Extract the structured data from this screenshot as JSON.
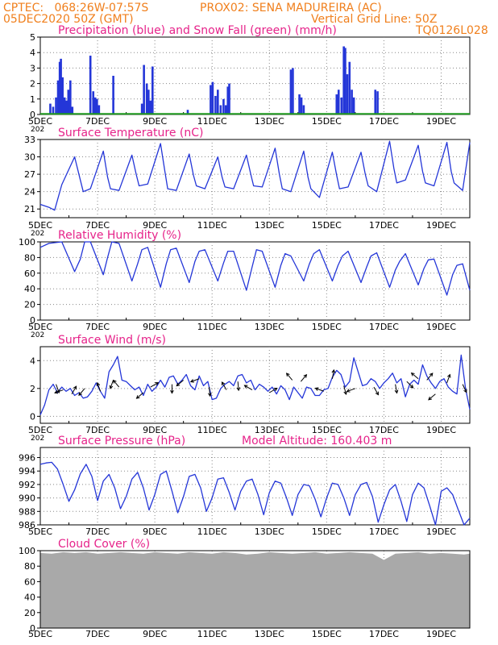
{
  "header": {
    "line1_left": "CPTEC:   068:26W-07:57S",
    "line1_right": "PROX02: SENA MADUREIRA (AC)",
    "line2_left": "05DEC2020 50Z (GMT)",
    "line2_right": "Vertical Grid Line: 50Z",
    "line3_right": "TQ0126L028"
  },
  "colors": {
    "header": "#f07f1c",
    "title": "#e6238a",
    "line": "#2436d8",
    "snow": "#1f9a1f",
    "cloud": "#a9a9a9"
  },
  "x_axis": {
    "labels": [
      "5DEC",
      "7DEC",
      "9DEC",
      "11DEC",
      "13DEC",
      "15DEC",
      "17DEC",
      "19DEC"
    ],
    "fragment": "202"
  },
  "chart_data": [
    {
      "id": "precip",
      "type": "bar",
      "title": "Precipitation (blue) and Snow Fall (green) (mm/h)",
      "ylim": [
        0,
        5
      ],
      "yticks": [
        0,
        1,
        2,
        3,
        4,
        5
      ],
      "grid": true,
      "x_day_range": [
        5,
        20
      ],
      "series": [
        {
          "name": "Precipitation",
          "color": "#2436d8",
          "x": [
            5.35,
            5.45,
            5.55,
            5.62,
            5.68,
            5.72,
            5.78,
            5.85,
            5.92,
            5.98,
            6.05,
            6.12,
            6.75,
            6.85,
            6.92,
            6.98,
            7.05,
            7.55,
            8.55,
            8.62,
            8.72,
            8.78,
            8.85,
            8.92,
            10.15,
            10.95,
            11.02,
            11.12,
            11.2,
            11.3,
            11.4,
            11.48,
            11.55,
            11.6,
            13.75,
            13.82,
            14.05,
            14.12,
            14.2,
            15.35,
            15.42,
            15.52,
            15.6,
            15.65,
            15.72,
            15.8,
            15.88,
            15.95,
            16.7,
            16.78
          ],
          "y": [
            0.7,
            0.5,
            1.1,
            2.2,
            3.4,
            3.6,
            2.4,
            1.1,
            0.9,
            1.6,
            2.2,
            0.5,
            3.8,
            1.5,
            1.1,
            1.0,
            0.6,
            2.5,
            0.7,
            3.2,
            2.0,
            1.6,
            0.9,
            3.1,
            0.3,
            1.9,
            2.1,
            1.2,
            1.6,
            0.6,
            1.0,
            0.6,
            1.8,
            2.0,
            2.9,
            3.0,
            1.3,
            1.1,
            0.6,
            1.3,
            1.6,
            1.1,
            4.4,
            4.3,
            2.6,
            3.4,
            1.6,
            1.1,
            1.6,
            1.5
          ]
        },
        {
          "name": "Snow Fall",
          "color": "#1f9a1f",
          "constant": 0
        }
      ]
    },
    {
      "id": "temp",
      "type": "line",
      "title": "Surface Temperature (nC)",
      "ylim": [
        19.5,
        33
      ],
      "yticks": [
        21,
        24,
        27,
        30,
        33
      ],
      "grid": true,
      "x": [
        5.0,
        5.3,
        5.5,
        5.75,
        6.2,
        6.4,
        6.5,
        6.75,
        7.2,
        7.35,
        7.45,
        7.75,
        8.2,
        8.35,
        8.45,
        8.75,
        9.2,
        9.35,
        9.45,
        9.75,
        10.2,
        10.35,
        10.45,
        10.75,
        11.2,
        11.35,
        11.45,
        11.75,
        12.2,
        12.35,
        12.45,
        12.75,
        13.2,
        13.35,
        13.45,
        13.75,
        14.2,
        14.35,
        14.45,
        14.75,
        15.2,
        15.35,
        15.45,
        15.75,
        16.2,
        16.35,
        16.45,
        16.75,
        17.2,
        17.35,
        17.45,
        17.75,
        18.2,
        18.35,
        18.45,
        18.75,
        19.2,
        19.35,
        19.45,
        19.75,
        20.0
      ],
      "values": [
        21.8,
        21.3,
        20.8,
        25.2,
        30.0,
        26.0,
        24.0,
        24.5,
        31.0,
        26.5,
        24.5,
        24.2,
        30.3,
        27.0,
        25.0,
        25.3,
        32.3,
        27.5,
        24.5,
        24.2,
        30.5,
        26.8,
        25.0,
        24.5,
        30.0,
        26.5,
        24.8,
        24.5,
        30.3,
        27.0,
        25.0,
        24.8,
        31.5,
        27.0,
        24.5,
        24.0,
        31.0,
        26.5,
        24.5,
        23.0,
        30.8,
        26.8,
        24.5,
        24.8,
        30.8,
        27.0,
        25.0,
        24.0,
        32.7,
        28.0,
        25.5,
        26.0,
        32.0,
        27.5,
        25.5,
        25.0,
        32.5,
        27.5,
        25.5,
        24.2,
        32.5
      ]
    },
    {
      "id": "rh",
      "type": "line",
      "title": "Relative Humidity (%)",
      "ylim": [
        0,
        100
      ],
      "yticks": [
        0,
        20,
        40,
        60,
        80,
        100
      ],
      "grid": true,
      "x": [
        5.0,
        5.3,
        5.5,
        5.75,
        6.2,
        6.4,
        6.55,
        6.75,
        7.2,
        7.35,
        7.5,
        7.75,
        8.2,
        8.4,
        8.55,
        8.75,
        9.2,
        9.4,
        9.55,
        9.75,
        10.2,
        10.4,
        10.55,
        10.75,
        11.2,
        11.4,
        11.55,
        11.75,
        12.2,
        12.4,
        12.55,
        12.75,
        13.2,
        13.4,
        13.55,
        13.75,
        14.2,
        14.4,
        14.55,
        14.75,
        15.2,
        15.4,
        15.55,
        15.75,
        16.2,
        16.4,
        16.55,
        16.75,
        17.2,
        17.4,
        17.55,
        17.75,
        18.2,
        18.4,
        18.55,
        18.75,
        19.2,
        19.4,
        19.55,
        19.75,
        20.0
      ],
      "values": [
        93,
        98,
        99,
        100,
        62,
        78,
        100,
        100,
        58,
        80,
        100,
        98,
        50,
        72,
        90,
        93,
        42,
        72,
        90,
        92,
        48,
        75,
        88,
        90,
        50,
        73,
        88,
        88,
        38,
        68,
        90,
        88,
        42,
        70,
        85,
        82,
        50,
        72,
        85,
        90,
        50,
        70,
        82,
        88,
        48,
        68,
        82,
        86,
        42,
        64,
        75,
        85,
        45,
        66,
        77,
        78,
        32,
        58,
        70,
        72,
        38
      ]
    },
    {
      "id": "wind",
      "type": "line",
      "title": "Surface Wind (m/s)",
      "ylim": [
        -0.5,
        5.0
      ],
      "yticks": [
        0,
        2,
        4
      ],
      "grid": true,
      "x": [
        5.0,
        5.15,
        5.3,
        5.45,
        5.6,
        5.75,
        5.9,
        6.05,
        6.2,
        6.35,
        6.5,
        6.65,
        6.8,
        6.95,
        7.1,
        7.25,
        7.4,
        7.55,
        7.7,
        7.85,
        8.0,
        8.15,
        8.3,
        8.45,
        8.6,
        8.75,
        8.9,
        9.05,
        9.2,
        9.35,
        9.5,
        9.65,
        9.8,
        9.95,
        10.1,
        10.25,
        10.4,
        10.55,
        10.7,
        10.85,
        11.0,
        11.15,
        11.3,
        11.45,
        11.6,
        11.75,
        11.9,
        12.05,
        12.2,
        12.35,
        12.5,
        12.65,
        12.8,
        12.95,
        13.1,
        13.25,
        13.4,
        13.55,
        13.7,
        13.85,
        14.0,
        14.15,
        14.3,
        14.45,
        14.6,
        14.75,
        14.9,
        15.05,
        15.2,
        15.35,
        15.5,
        15.65,
        15.8,
        15.95,
        16.1,
        16.25,
        16.4,
        16.55,
        16.7,
        16.85,
        17.0,
        17.15,
        17.3,
        17.45,
        17.6,
        17.75,
        17.9,
        18.05,
        18.2,
        18.35,
        18.5,
        18.65,
        18.8,
        18.95,
        19.1,
        19.25,
        19.4,
        19.55,
        19.7,
        19.85,
        20.0
      ],
      "values": [
        0.1,
        0.8,
        1.9,
        2.3,
        1.7,
        2.1,
        1.8,
        2.0,
        1.5,
        1.7,
        1.3,
        1.4,
        1.8,
        2.4,
        1.8,
        1.3,
        3.2,
        3.7,
        4.3,
        2.6,
        2.5,
        2.2,
        1.9,
        2.1,
        1.5,
        2.3,
        1.8,
        2.1,
        2.6,
        2.1,
        2.8,
        2.9,
        2.3,
        2.6,
        3.0,
        2.2,
        1.9,
        2.9,
        2.2,
        2.5,
        1.2,
        1.3,
        2.0,
        2.3,
        2.5,
        2.2,
        2.9,
        3.0,
        2.4,
        2.6,
        1.9,
        2.3,
        2.1,
        1.8,
        2.1,
        1.6,
        2.2,
        1.9,
        1.2,
        2.1,
        1.7,
        1.3,
        2.1,
        2.0,
        1.5,
        1.5,
        1.9,
        2.0,
        2.8,
        3.3,
        3.0,
        2.1,
        2.5,
        4.2,
        3.2,
        2.2,
        2.3,
        2.7,
        2.5,
        2.0,
        2.4,
        2.7,
        3.1,
        2.4,
        2.7,
        1.4,
        2.3,
        2.6,
        2.3,
        3.7,
        2.9,
        2.4,
        2.0,
        2.5,
        2.7,
        2.1,
        1.8,
        1.6,
        4.4,
        2.0,
        0.5
      ],
      "arrows": [
        {
          "x": 5.55,
          "y": 2.3,
          "dir": 160
        },
        {
          "x": 5.8,
          "y": 1.9,
          "dir": 250
        },
        {
          "x": 6.1,
          "y": 1.6,
          "dir": 30
        },
        {
          "x": 6.55,
          "y": 2.0,
          "dir": 220
        },
        {
          "x": 7.1,
          "y": 1.8,
          "dir": 340
        },
        {
          "x": 7.55,
          "y": 2.6,
          "dir": 200
        },
        {
          "x": 7.75,
          "y": 2.1,
          "dir": 320
        },
        {
          "x": 8.6,
          "y": 1.7,
          "dir": 230
        },
        {
          "x": 8.85,
          "y": 2.1,
          "dir": 60
        },
        {
          "x": 9.6,
          "y": 2.3,
          "dir": 180
        },
        {
          "x": 10.0,
          "y": 2.6,
          "dir": 230
        },
        {
          "x": 10.55,
          "y": 2.7,
          "dir": 250
        },
        {
          "x": 10.9,
          "y": 2.1,
          "dir": 175
        },
        {
          "x": 11.5,
          "y": 1.9,
          "dir": 330
        },
        {
          "x": 11.9,
          "y": 2.5,
          "dir": 175
        },
        {
          "x": 12.4,
          "y": 1.9,
          "dir": 300
        },
        {
          "x": 13.0,
          "y": 1.7,
          "dir": 60
        },
        {
          "x": 13.8,
          "y": 2.6,
          "dir": 320
        },
        {
          "x": 14.1,
          "y": 2.5,
          "dir": 40
        },
        {
          "x": 14.9,
          "y": 1.8,
          "dir": 290
        },
        {
          "x": 15.2,
          "y": 2.7,
          "dir": 10
        },
        {
          "x": 15.6,
          "y": 2.2,
          "dir": 165
        },
        {
          "x": 16.0,
          "y": 2.0,
          "dir": 250
        },
        {
          "x": 16.65,
          "y": 2.1,
          "dir": 150
        },
        {
          "x": 17.4,
          "y": 2.3,
          "dir": 170
        },
        {
          "x": 17.8,
          "y": 2.5,
          "dir": 135
        },
        {
          "x": 18.2,
          "y": 2.7,
          "dir": 310
        },
        {
          "x": 18.5,
          "y": 2.6,
          "dir": 40
        },
        {
          "x": 18.8,
          "y": 1.6,
          "dir": 230
        },
        {
          "x": 19.2,
          "y": 2.4,
          "dir": 20
        },
        {
          "x": 19.75,
          "y": 2.3,
          "dir": 155
        }
      ]
    },
    {
      "id": "pres",
      "type": "line",
      "title": "Surface Pressure (hPa)",
      "annotation": "Model Altitude: 160.403 m",
      "ylim": [
        986,
        997.5
      ],
      "yticks": [
        986,
        988,
        990,
        992,
        994,
        996
      ],
      "grid": true,
      "x": [
        5.0,
        5.2,
        5.4,
        5.6,
        5.8,
        6.0,
        6.2,
        6.4,
        6.6,
        6.8,
        7.0,
        7.2,
        7.4,
        7.6,
        7.8,
        8.0,
        8.2,
        8.4,
        8.6,
        8.8,
        9.0,
        9.2,
        9.4,
        9.6,
        9.8,
        10.0,
        10.2,
        10.4,
        10.6,
        10.8,
        11.0,
        11.2,
        11.4,
        11.6,
        11.8,
        12.0,
        12.2,
        12.4,
        12.6,
        12.8,
        13.0,
        13.2,
        13.4,
        13.6,
        13.8,
        14.0,
        14.2,
        14.4,
        14.6,
        14.8,
        15.0,
        15.2,
        15.4,
        15.6,
        15.8,
        16.0,
        16.2,
        16.4,
        16.6,
        16.8,
        17.0,
        17.2,
        17.4,
        17.6,
        17.8,
        18.0,
        18.2,
        18.4,
        18.6,
        18.8,
        19.0,
        19.2,
        19.4,
        19.6,
        19.8,
        20.0
      ],
      "values": [
        995,
        995.2,
        995.3,
        994.3,
        992.0,
        989.5,
        991.2,
        993.6,
        995.0,
        993.2,
        989.6,
        992.5,
        993.5,
        991.5,
        988.4,
        990.2,
        992.8,
        993.8,
        991.5,
        988.2,
        990.5,
        993.5,
        994.0,
        991.0,
        987.8,
        990.2,
        993.2,
        993.5,
        991.5,
        988.0,
        990.0,
        992.8,
        993.0,
        990.8,
        988.2,
        991.0,
        992.5,
        992.8,
        990.5,
        987.5,
        990.8,
        992.5,
        992.2,
        990.0,
        987.4,
        990.5,
        992.0,
        991.8,
        989.8,
        987.2,
        990.0,
        992.2,
        992.0,
        990.0,
        987.4,
        990.5,
        992.0,
        992.3,
        990.2,
        986.4,
        989.0,
        991.2,
        992.0,
        989.5,
        986.5,
        990.5,
        992.2,
        991.5,
        988.8,
        986.0,
        991.0,
        991.5,
        990.5,
        988.2,
        986.0,
        987.0
      ]
    },
    {
      "id": "cloud",
      "type": "area",
      "title": "Cloud Cover (%)",
      "ylim": [
        0,
        100
      ],
      "yticks": [
        0,
        20,
        40,
        60,
        80,
        100
      ],
      "grid": true,
      "x": [
        5.0,
        5.4,
        5.8,
        6.2,
        6.6,
        7.0,
        7.4,
        7.8,
        8.2,
        8.6,
        9.0,
        9.4,
        9.8,
        10.2,
        10.6,
        11.0,
        11.4,
        11.8,
        12.2,
        12.6,
        13.0,
        13.4,
        13.8,
        14.2,
        14.6,
        15.0,
        15.4,
        15.8,
        16.2,
        16.6,
        17.0,
        17.4,
        17.8,
        18.2,
        18.6,
        19.0,
        19.4,
        19.8,
        20.0
      ],
      "values": [
        97,
        96,
        98,
        97,
        98,
        96,
        97,
        98,
        97,
        96,
        98,
        97,
        96,
        98,
        97,
        96,
        98,
        97,
        95,
        96,
        98,
        97,
        96,
        97,
        98,
        96,
        97,
        98,
        97,
        96,
        88,
        96,
        97,
        98,
        96,
        97,
        96,
        95,
        96
      ]
    }
  ]
}
